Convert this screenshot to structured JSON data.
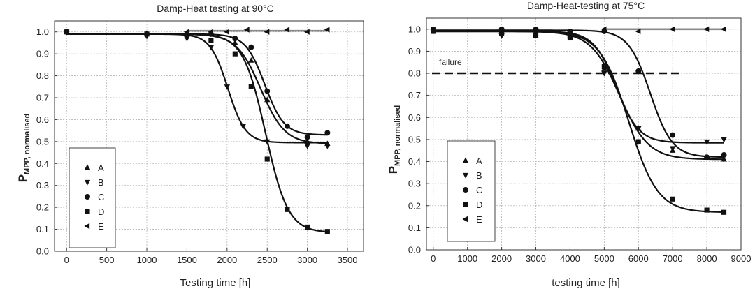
{
  "chart_data": [
    {
      "type": "scatter",
      "title": "Damp-Heat testing at 90°C",
      "xlabel": "Testing time [h]",
      "ylabel_main": "P",
      "ylabel_sub": "MPP, normalised",
      "xlim": [
        -150,
        3700
      ],
      "ylim": [
        0,
        1.05
      ],
      "xticks": [
        "0",
        "500",
        "1000",
        "1500",
        "2000",
        "2500",
        "3000",
        "3500"
      ],
      "xtick_values": [
        0,
        500,
        1000,
        1500,
        2000,
        2500,
        3000,
        3500
      ],
      "yticks": [
        "0.0",
        "0.1",
        "0.2",
        "0.3",
        "0.4",
        "0.5",
        "0.6",
        "0.7",
        "0.8",
        "0.9",
        "1.0"
      ],
      "ytick_values": [
        0,
        0.1,
        0.2,
        0.3,
        0.4,
        0.5,
        0.6,
        0.7,
        0.8,
        0.9,
        1.0
      ],
      "grid": true,
      "legend_position": "bottom-left",
      "series": [
        {
          "name": "A",
          "marker": "triangle-up",
          "points": [
            [
              0,
              1.0
            ],
            [
              1000,
              0.99
            ],
            [
              1500,
              0.99
            ],
            [
              1800,
              0.99
            ],
            [
              2100,
              0.95
            ],
            [
              2300,
              0.87
            ],
            [
              2500,
              0.69
            ],
            [
              2750,
              0.57
            ],
            [
              3000,
              0.5
            ],
            [
              3250,
              0.49
            ]
          ],
          "fit": {
            "top": 0.99,
            "bottom": 0.49,
            "mid": 2420,
            "scale": 150
          }
        },
        {
          "name": "B",
          "marker": "triangle-down",
          "points": [
            [
              0,
              1.0
            ],
            [
              1000,
              0.98
            ],
            [
              1500,
              0.97
            ],
            [
              1800,
              0.93
            ],
            [
              2000,
              0.75
            ],
            [
              2200,
              0.57
            ],
            [
              2500,
              0.5
            ],
            [
              3000,
              0.48
            ],
            [
              3250,
              0.48
            ]
          ],
          "fit": {
            "top": 0.99,
            "bottom": 0.495,
            "mid": 2010,
            "scale": 110
          }
        },
        {
          "name": "C",
          "marker": "circle",
          "points": [
            [
              0,
              1.0
            ],
            [
              1000,
              0.99
            ],
            [
              1500,
              0.99
            ],
            [
              1800,
              0.99
            ],
            [
              2100,
              0.97
            ],
            [
              2300,
              0.93
            ],
            [
              2500,
              0.73
            ],
            [
              2750,
              0.57
            ],
            [
              3000,
              0.52
            ],
            [
              3250,
              0.54
            ]
          ],
          "fit": {
            "top": 0.99,
            "bottom": 0.53,
            "mid": 2470,
            "scale": 120
          }
        },
        {
          "name": "D",
          "marker": "square",
          "points": [
            [
              0,
              1.0
            ],
            [
              1000,
              0.99
            ],
            [
              1500,
              0.98
            ],
            [
              1800,
              0.96
            ],
            [
              2100,
              0.9
            ],
            [
              2300,
              0.75
            ],
            [
              2500,
              0.42
            ],
            [
              2750,
              0.19
            ],
            [
              3000,
              0.11
            ],
            [
              3250,
              0.09
            ]
          ],
          "fit": {
            "top": 0.99,
            "bottom": 0.085,
            "mid": 2480,
            "scale": 140
          }
        },
        {
          "name": "E",
          "marker": "triangle-left",
          "points": [
            [
              1500,
              1.0
            ],
            [
              1800,
              1.0
            ],
            [
              2000,
              1.0
            ],
            [
              2250,
              1.01
            ],
            [
              2500,
              1.0
            ],
            [
              2750,
              1.01
            ],
            [
              3000,
              1.0
            ],
            [
              3250,
              1.01
            ]
          ],
          "fit": {
            "top": 1.005,
            "bottom": 1.005,
            "mid": 2000,
            "scale": 100
          }
        }
      ]
    },
    {
      "type": "scatter",
      "title": "Damp-Heat-testing at 75°C",
      "xlabel": "testing time [h]",
      "ylabel_main": "P",
      "ylabel_sub": "MPP, normalised",
      "xlim": [
        -200,
        9000
      ],
      "ylim": [
        0,
        1.05
      ],
      "xticks": [
        "0",
        "1000",
        "2000",
        "3000",
        "4000",
        "5000",
        "6000",
        "7000",
        "8000",
        "9000"
      ],
      "xtick_values": [
        0,
        1000,
        2000,
        3000,
        4000,
        5000,
        6000,
        7000,
        8000,
        9000
      ],
      "yticks": [
        "0.0",
        "0.1",
        "0.2",
        "0.3",
        "0.4",
        "0.5",
        "0.6",
        "0.7",
        "0.8",
        "0.9",
        "1.0"
      ],
      "ytick_values": [
        0,
        0.1,
        0.2,
        0.3,
        0.4,
        0.5,
        0.6,
        0.7,
        0.8,
        0.9,
        1.0
      ],
      "grid": true,
      "legend_position": "bottom-left",
      "annotations": [
        {
          "text": "failure",
          "y": 0.8,
          "x_start": -200,
          "x_end": 7300
        }
      ],
      "series": [
        {
          "name": "A",
          "marker": "triangle-up",
          "points": [
            [
              0,
              0.99
            ],
            [
              2000,
              0.99
            ],
            [
              4000,
              0.97
            ],
            [
              5000,
              0.82
            ],
            [
              6000,
              0.55
            ],
            [
              7000,
              0.45
            ],
            [
              8500,
              0.41
            ]
          ],
          "fit": {
            "top": 0.99,
            "bottom": 0.41,
            "mid": 5450,
            "scale": 420
          }
        },
        {
          "name": "B",
          "marker": "triangle-down",
          "points": [
            [
              0,
              0.99
            ],
            [
              2000,
              0.97
            ],
            [
              3000,
              0.98
            ],
            [
              4000,
              0.96
            ],
            [
              5000,
              0.8
            ],
            [
              6000,
              0.55
            ],
            [
              7000,
              0.46
            ],
            [
              8000,
              0.49
            ],
            [
              8500,
              0.5
            ]
          ],
          "fit": {
            "top": 0.99,
            "bottom": 0.485,
            "mid": 5350,
            "scale": 330
          }
        },
        {
          "name": "C",
          "marker": "circle",
          "points": [
            [
              0,
              1.0
            ],
            [
              2000,
              1.0
            ],
            [
              3000,
              1.0
            ],
            [
              4000,
              0.99
            ],
            [
              5000,
              0.99
            ],
            [
              6000,
              0.81
            ],
            [
              7000,
              0.52
            ],
            [
              8000,
              0.42
            ],
            [
              8500,
              0.43
            ]
          ],
          "fit": {
            "top": 0.995,
            "bottom": 0.42,
            "mid": 6350,
            "scale": 320
          }
        },
        {
          "name": "D",
          "marker": "square",
          "points": [
            [
              0,
              0.99
            ],
            [
              2000,
              0.98
            ],
            [
              3000,
              0.97
            ],
            [
              4000,
              0.96
            ],
            [
              5000,
              0.83
            ],
            [
              6000,
              0.49
            ],
            [
              7000,
              0.23
            ],
            [
              8000,
              0.18
            ],
            [
              8500,
              0.17
            ]
          ],
          "fit": {
            "top": 0.99,
            "bottom": 0.17,
            "mid": 5720,
            "scale": 420
          }
        },
        {
          "name": "E",
          "marker": "triangle-left",
          "points": [
            [
              5000,
              1.0
            ],
            [
              6000,
              0.99
            ],
            [
              7000,
              1.0
            ],
            [
              8000,
              1.0
            ],
            [
              8500,
              1.0
            ]
          ],
          "fit": {
            "top": 1.0,
            "bottom": 1.0,
            "mid": 5000,
            "scale": 100
          }
        }
      ]
    }
  ]
}
